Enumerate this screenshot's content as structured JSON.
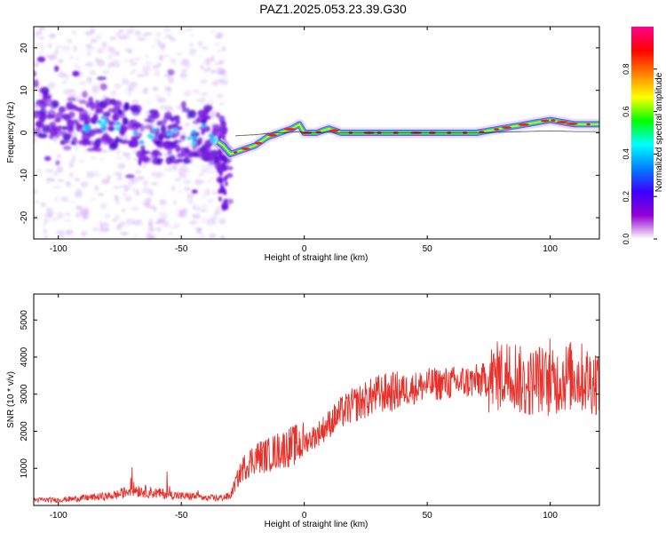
{
  "title": "PAZ1.2025.053.23.39.G30",
  "chart_data": [
    {
      "type": "heatmap",
      "xlabel": "Height of straight line (km)",
      "ylabel": "Frequency (Hz)",
      "xlim": [
        -110,
        120
      ],
      "ylim": [
        -25,
        25
      ],
      "xticks": [
        -100,
        -50,
        0,
        50,
        100
      ],
      "yticks": [
        -20,
        -10,
        0,
        10,
        20
      ],
      "colorbar": {
        "label": "Normalized spectral amplitude",
        "range": [
          0,
          1
        ],
        "ticks": [
          "0.0",
          "0.2",
          "0.4",
          "0.6",
          "0.8"
        ],
        "colors": [
          "#ffffff",
          "#9400d3",
          "#3c00ff",
          "#0080ff",
          "#00ffff",
          "#00ff00",
          "#ffff00",
          "#ff8000",
          "#ff0000",
          "#ff0090"
        ]
      },
      "ridge": {
        "x": [
          -110,
          -100,
          -90,
          -80,
          -70,
          -60,
          -50,
          -40,
          -33,
          -30,
          -25,
          -20,
          -15,
          -10,
          -5,
          -2,
          0,
          5,
          10,
          15,
          20,
          30,
          40,
          50,
          60,
          70,
          80,
          90,
          100,
          110,
          120
        ],
        "y": [
          5,
          3,
          2,
          2,
          0,
          -1,
          -1,
          0,
          -3,
          -5,
          -4,
          -3,
          -1,
          0,
          1,
          2,
          0,
          0,
          1,
          0,
          0,
          0,
          0,
          0,
          0,
          0,
          1,
          2,
          3,
          2,
          2
        ]
      }
    },
    {
      "type": "line",
      "xlabel": "Height of straight line (km)",
      "ylabel": "SNR (10 * v/v)",
      "xlim": [
        -110,
        120
      ],
      "ylim": [
        0,
        5700
      ],
      "xticks": [
        -100,
        -50,
        0,
        50,
        100
      ],
      "yticks": [
        1000,
        2000,
        3000,
        4000,
        5000
      ],
      "color": "#e8302a",
      "series": [
        {
          "x": [
            -110,
            -100,
            -90,
            -80,
            -75,
            -70,
            -65,
            -60,
            -55,
            -50,
            -45,
            -40,
            -35,
            -30,
            -28,
            -25,
            -20,
            -15,
            -10,
            -5,
            0,
            5,
            10,
            15,
            20,
            25,
            30,
            40,
            50,
            60,
            70,
            75,
            80,
            85,
            90,
            95,
            100,
            105,
            110,
            115,
            120
          ],
          "y": [
            150,
            150,
            200,
            250,
            300,
            450,
            380,
            330,
            300,
            250,
            250,
            200,
            200,
            250,
            600,
            1000,
            1300,
            1350,
            1500,
            1600,
            1700,
            1900,
            2200,
            2500,
            2700,
            2850,
            3000,
            3100,
            3250,
            3300,
            3350,
            3400,
            3500,
            3600,
            3200,
            3450,
            3250,
            3450,
            3500,
            3400,
            3350
          ]
        }
      ]
    }
  ]
}
